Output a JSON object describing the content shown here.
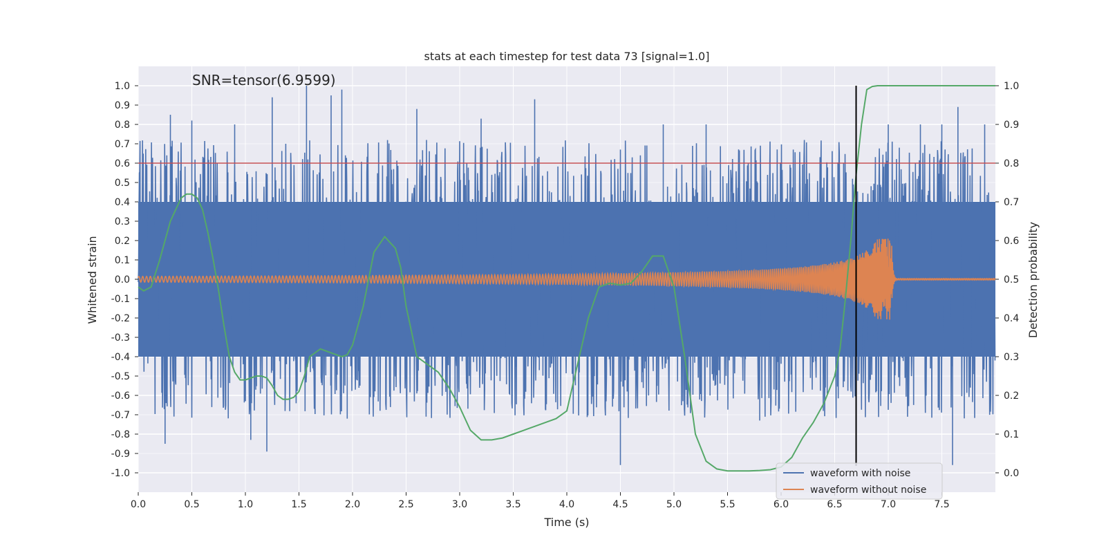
{
  "chart_data": {
    "type": "line",
    "title": "stats at each timestep for test data 73 [signal=1.0]",
    "xlabel": "Time (s)",
    "ylabel": "Whitened strain",
    "ylabel_right": "Detection probability",
    "annotation": "SNR=tensor(6.9599)",
    "xlim": [
      0.0,
      8.0
    ],
    "ylim": [
      -1.1,
      1.1
    ],
    "ylim_right": [
      -0.05,
      1.05
    ],
    "x_ticks": [
      "0.0",
      "0.5",
      "1.0",
      "1.5",
      "2.0",
      "2.5",
      "3.0",
      "3.5",
      "4.0",
      "4.5",
      "5.0",
      "5.5",
      "6.0",
      "6.5",
      "7.0",
      "7.5"
    ],
    "y_ticks": [
      "1.0",
      "0.9",
      "0.8",
      "0.7",
      "0.6",
      "0.5",
      "0.4",
      "0.3",
      "0.2",
      "0.1",
      "0.0",
      "-0.1",
      "-0.2",
      "-0.3",
      "-0.4",
      "-0.5",
      "-0.6",
      "-0.7",
      "-0.8",
      "-0.9",
      "-1.0"
    ],
    "y_ticks_right": [
      "1.0",
      "0.9",
      "0.8",
      "0.7",
      "0.6",
      "0.5",
      "0.4",
      "0.3",
      "0.2",
      "0.1",
      "0.0"
    ],
    "grid": true,
    "legend_position": "lower-right",
    "threshold": {
      "y": 0.8,
      "color": "#c44e52"
    },
    "detection_time": 6.7,
    "series": [
      {
        "name": "waveform with noise",
        "color": "#4c72b0",
        "axis": "left",
        "envelope_min": -0.4,
        "envelope_max": 0.4,
        "peaks": [
          [
            0.25,
            -0.85
          ],
          [
            0.3,
            0.85
          ],
          [
            0.5,
            0.82
          ],
          [
            0.9,
            0.8
          ],
          [
            1.05,
            -0.83
          ],
          [
            1.2,
            -0.89
          ],
          [
            1.25,
            0.94
          ],
          [
            1.57,
            1.0
          ],
          [
            1.8,
            0.95
          ],
          [
            1.9,
            0.98
          ],
          [
            1.95,
            -0.72
          ],
          [
            2.6,
            0.88
          ],
          [
            3.2,
            0.83
          ],
          [
            3.7,
            0.93
          ],
          [
            4.5,
            -0.96
          ],
          [
            4.9,
            0.8
          ],
          [
            5.3,
            0.8
          ],
          [
            5.8,
            -0.73
          ],
          [
            6.7,
            0.85
          ],
          [
            7.0,
            0.8
          ],
          [
            7.3,
            0.8
          ],
          [
            7.5,
            0.8
          ],
          [
            7.6,
            -0.96
          ],
          [
            7.65,
            0.89
          ],
          [
            7.9,
            0.8
          ]
        ]
      },
      {
        "name": "waveform without noise",
        "color": "#dd8452",
        "axis": "left",
        "chirp_start": 0.0,
        "merger_time": 7.03,
        "initial_amplitude": 0.015,
        "peak_amplitude": 0.21,
        "ringdown_end": 7.08
      },
      {
        "name": "detection probability",
        "color": "#55a868",
        "axis": "right",
        "x": [
          0.0,
          0.05,
          0.12,
          0.2,
          0.3,
          0.4,
          0.45,
          0.5,
          0.55,
          0.6,
          0.65,
          0.7,
          0.75,
          0.8,
          0.85,
          0.9,
          0.95,
          1.0,
          1.05,
          1.1,
          1.15,
          1.2,
          1.25,
          1.3,
          1.35,
          1.4,
          1.45,
          1.5,
          1.55,
          1.6,
          1.7,
          1.8,
          1.9,
          1.95,
          2.0,
          2.1,
          2.2,
          2.3,
          2.4,
          2.45,
          2.5,
          2.6,
          2.7,
          2.8,
          2.9,
          3.0,
          3.1,
          3.2,
          3.3,
          3.4,
          3.5,
          3.6,
          3.7,
          3.8,
          3.9,
          4.0,
          4.1,
          4.2,
          4.3,
          4.4,
          4.5,
          4.6,
          4.7,
          4.8,
          4.9,
          5.0,
          5.1,
          5.2,
          5.3,
          5.4,
          5.5,
          5.6,
          5.7,
          5.8,
          5.9,
          6.0,
          6.1,
          6.2,
          6.3,
          6.4,
          6.5,
          6.55,
          6.6,
          6.65,
          6.7,
          6.75,
          6.8,
          6.85,
          6.9,
          7.0,
          7.5,
          8.0
        ],
        "y": [
          0.48,
          0.47,
          0.48,
          0.55,
          0.65,
          0.71,
          0.72,
          0.72,
          0.71,
          0.68,
          0.62,
          0.55,
          0.47,
          0.38,
          0.3,
          0.26,
          0.24,
          0.24,
          0.245,
          0.25,
          0.25,
          0.245,
          0.225,
          0.2,
          0.19,
          0.19,
          0.195,
          0.21,
          0.25,
          0.3,
          0.32,
          0.31,
          0.3,
          0.305,
          0.33,
          0.43,
          0.57,
          0.61,
          0.58,
          0.53,
          0.43,
          0.3,
          0.28,
          0.26,
          0.22,
          0.17,
          0.11,
          0.085,
          0.085,
          0.09,
          0.1,
          0.11,
          0.12,
          0.13,
          0.14,
          0.16,
          0.28,
          0.4,
          0.48,
          0.49,
          0.485,
          0.49,
          0.52,
          0.56,
          0.56,
          0.48,
          0.3,
          0.1,
          0.03,
          0.01,
          0.005,
          0.005,
          0.005,
          0.006,
          0.008,
          0.015,
          0.04,
          0.09,
          0.13,
          0.18,
          0.25,
          0.32,
          0.45,
          0.6,
          0.77,
          0.9,
          0.99,
          0.998,
          1.0,
          1.0,
          1.0,
          1.0
        ]
      }
    ]
  }
}
